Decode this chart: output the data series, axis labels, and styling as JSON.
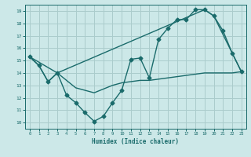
{
  "xlabel": "Humidex (Indice chaleur)",
  "xlim": [
    -0.5,
    23.5
  ],
  "ylim": [
    9.5,
    19.5
  ],
  "yticks": [
    10,
    11,
    12,
    13,
    14,
    15,
    16,
    17,
    18,
    19
  ],
  "xticks": [
    0,
    1,
    2,
    3,
    4,
    5,
    6,
    7,
    8,
    9,
    10,
    11,
    12,
    13,
    14,
    15,
    16,
    17,
    18,
    19,
    20,
    21,
    22,
    23
  ],
  "bg_color": "#cce8e8",
  "grid_color": "#aacccc",
  "line_color": "#1a6b6b",
  "series": [
    {
      "x": [
        0,
        1,
        2,
        3,
        4,
        5,
        6,
        7,
        8,
        9,
        10,
        11,
        12,
        13,
        14,
        15,
        16,
        17,
        18,
        19,
        20,
        21,
        22,
        23
      ],
      "y": [
        15.3,
        14.6,
        13.3,
        14.0,
        12.2,
        11.6,
        10.8,
        10.1,
        10.5,
        11.6,
        12.6,
        15.1,
        15.2,
        13.6,
        16.7,
        17.6,
        18.3,
        18.3,
        19.1,
        19.1,
        18.6,
        17.4,
        15.6,
        14.1
      ],
      "marker": "D",
      "markersize": 2.5,
      "linewidth": 1.0
    },
    {
      "x": [
        0,
        1,
        2,
        3,
        5,
        6,
        7,
        8,
        9,
        10,
        11,
        12,
        13,
        14,
        15,
        16,
        17,
        18,
        19,
        20,
        21,
        22,
        23
      ],
      "y": [
        15.3,
        14.6,
        13.3,
        14.0,
        12.8,
        12.6,
        12.4,
        12.7,
        13.0,
        13.2,
        13.3,
        13.4,
        13.4,
        13.5,
        13.6,
        13.7,
        13.8,
        13.9,
        14.0,
        14.0,
        14.0,
        14.0,
        14.1
      ],
      "marker": null,
      "markersize": 0,
      "linewidth": 1.0
    },
    {
      "x": [
        0,
        3,
        19,
        20,
        23
      ],
      "y": [
        15.3,
        14.0,
        19.1,
        18.6,
        14.1
      ],
      "marker": null,
      "markersize": 0,
      "linewidth": 1.0
    }
  ]
}
